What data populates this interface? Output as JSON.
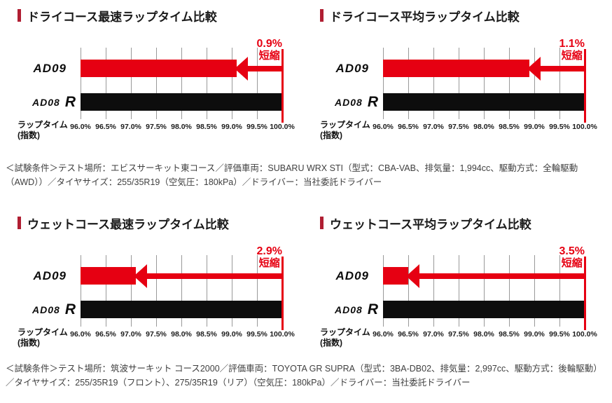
{
  "colors": {
    "accent_red": "#e60012",
    "title_marker_red": "#b01e32",
    "bar_black": "#0d0d0d",
    "gridline_gray": "#999999",
    "title_text": "#1a1a1a",
    "note_text": "#3f3f3f"
  },
  "notes": [
    {
      "text": "＜試験条件＞テスト場所：エビスサーキット東コース／評価車両：SUBARU WRX STI（型式：CBA-VAB、排気量：1,994cc、駆動方式：全輪駆動（AWD））／タイヤサイズ：255/35R19（空気圧：180kPa）／ドライバー：当社委託ドライバー"
    },
    {
      "text": "＜試験条件＞テスト場所：筑波サーキット コース2000／評価車両：TOYOTA GR SUPRA（型式：3BA-DB02、排気量：2,997cc、駆動方式：後輪駆動）／タイヤサイズ：255/35R19（フロント）、275/35R19（リア）（空気圧：180kPa）／ドライバー：当社委託ドライバー"
    }
  ],
  "chart_data": [
    {
      "type": "bar",
      "orientation": "horizontal",
      "title": "ドライコース最速ラップタイム比較",
      "categories": [
        "AD09",
        "AD08 R"
      ],
      "values": [
        99.1,
        100.0
      ],
      "value_unit": "%",
      "xlabel": "ラップタイム\n(指数)",
      "xlim": [
        96.0,
        100.0
      ],
      "xticks": [
        "96.0%",
        "96.5%",
        "97.0%",
        "97.5%",
        "98.0%",
        "98.5%",
        "99.0%",
        "99.5%",
        "100.0%"
      ],
      "grid": true,
      "legend": false,
      "series_colors": [
        "#e60012",
        "#0d0d0d"
      ],
      "annotation": {
        "value": "0.9%",
        "label": "短縮"
      }
    },
    {
      "type": "bar",
      "orientation": "horizontal",
      "title": "ドライコース平均ラップタイム比較",
      "categories": [
        "AD09",
        "AD08 R"
      ],
      "values": [
        98.9,
        100.0
      ],
      "value_unit": "%",
      "xlabel": "ラップタイム\n(指数)",
      "xlim": [
        96.0,
        100.0
      ],
      "xticks": [
        "96.0%",
        "96.5%",
        "97.0%",
        "97.5%",
        "98.0%",
        "98.5%",
        "99.0%",
        "99.5%",
        "100.0%"
      ],
      "grid": true,
      "legend": false,
      "series_colors": [
        "#e60012",
        "#0d0d0d"
      ],
      "annotation": {
        "value": "1.1%",
        "label": "短縮"
      }
    },
    {
      "type": "bar",
      "orientation": "horizontal",
      "title": "ウェットコース最速ラップタイム比較",
      "categories": [
        "AD09",
        "AD08 R"
      ],
      "values": [
        97.1,
        100.0
      ],
      "value_unit": "%",
      "xlabel": "ラップタイム\n(指数)",
      "xlim": [
        96.0,
        100.0
      ],
      "xticks": [
        "96.0%",
        "96.5%",
        "97.0%",
        "97.5%",
        "98.0%",
        "98.5%",
        "99.0%",
        "99.5%",
        "100.0%"
      ],
      "grid": true,
      "legend": false,
      "series_colors": [
        "#e60012",
        "#0d0d0d"
      ],
      "annotation": {
        "value": "2.9%",
        "label": "短縮"
      }
    },
    {
      "type": "bar",
      "orientation": "horizontal",
      "title": "ウェットコース平均ラップタイム比較",
      "categories": [
        "AD09",
        "AD08 R"
      ],
      "values": [
        96.5,
        100.0
      ],
      "value_unit": "%",
      "xlabel": "ラップタイム\n(指数)",
      "xlim": [
        96.0,
        100.0
      ],
      "xticks": [
        "96.0%",
        "96.5%",
        "97.0%",
        "97.5%",
        "98.0%",
        "98.5%",
        "99.0%",
        "99.5%",
        "100.0%"
      ],
      "grid": true,
      "legend": false,
      "series_colors": [
        "#e60012",
        "#0d0d0d"
      ],
      "annotation": {
        "value": "3.5%",
        "label": "短縮"
      }
    }
  ]
}
